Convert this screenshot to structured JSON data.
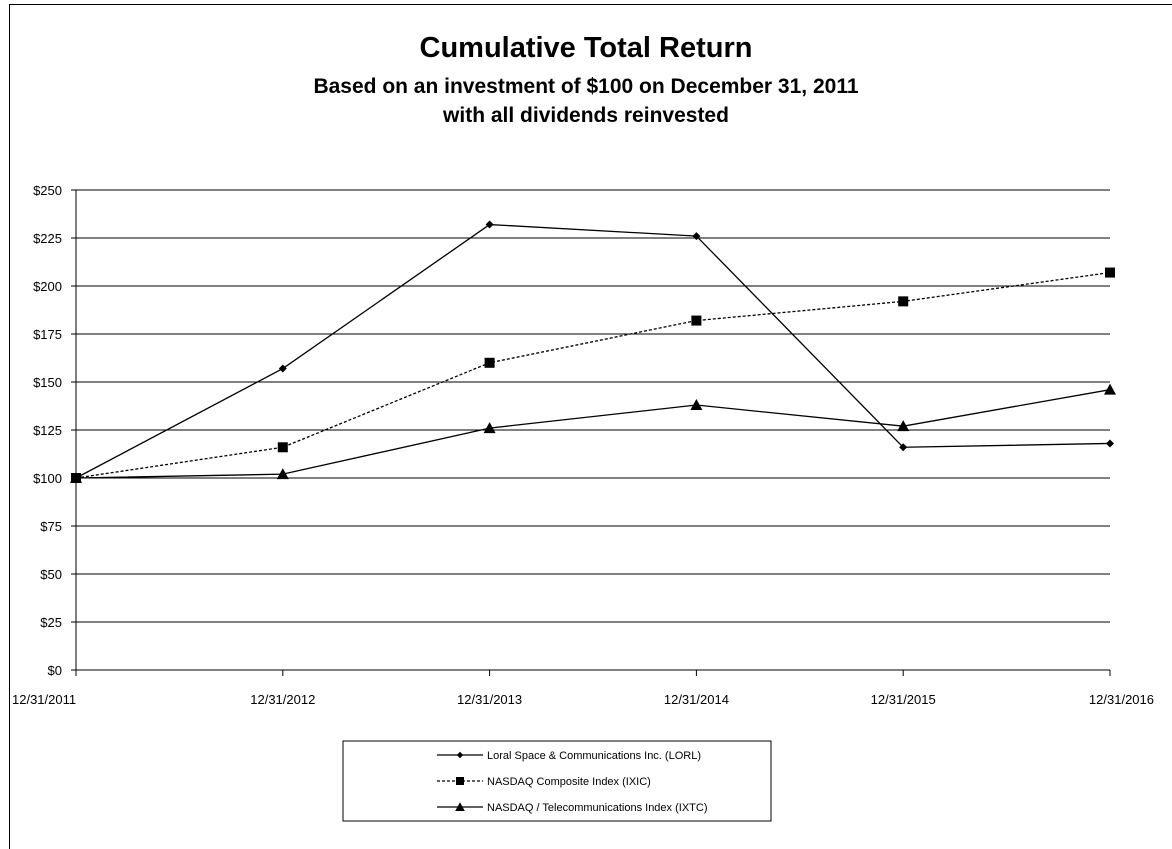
{
  "chart_data": {
    "type": "line",
    "title": "Cumulative Total Return",
    "subtitle_lines": [
      "Based on an investment of $100 on December 31, 2011",
      "with all dividends reinvested"
    ],
    "xlabel": "",
    "ylabel": "",
    "categories": [
      "12/31/2011",
      "12/31/2012",
      "12/31/2013",
      "12/31/2014",
      "12/31/2015",
      "12/31/2016"
    ],
    "y_ticks": [
      "$0",
      "$25",
      "$50",
      "$75",
      "$100",
      "$125",
      "$150",
      "$175",
      "$200",
      "$225",
      "$250"
    ],
    "ylim": [
      0,
      250
    ],
    "grid": true,
    "legend_position": "bottom",
    "series": [
      {
        "name": "Loral Space & Communications Inc. (LORL)",
        "marker": "diamond",
        "dash": "solid",
        "color": "#000000",
        "values": [
          100,
          157,
          232,
          226,
          116,
          118
        ]
      },
      {
        "name": "NASDAQ Composite Index (IXIC)",
        "marker": "square",
        "dash": "dashed",
        "color": "#000000",
        "values": [
          100,
          116,
          160,
          182,
          192,
          207
        ]
      },
      {
        "name": "NASDAQ / Telecommunications Index (IXTC)",
        "marker": "triangle",
        "dash": "solid",
        "color": "#000000",
        "values": [
          100,
          102,
          126,
          138,
          127,
          146
        ]
      }
    ]
  }
}
